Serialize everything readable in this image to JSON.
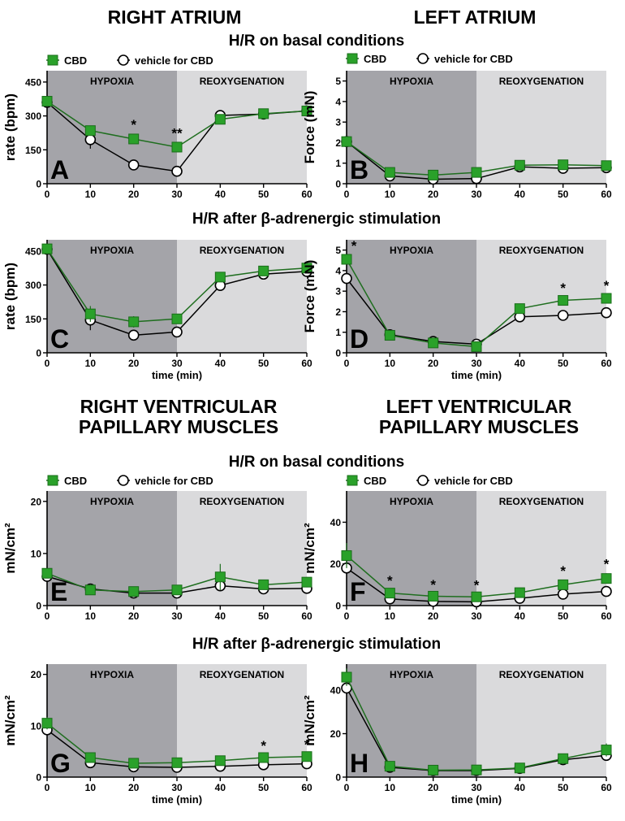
{
  "headers": {
    "right_atrium": "RIGHT ATRIUM",
    "left_atrium": "LEFT ATRIUM",
    "rv_line1": "RIGHT VENTRICULAR",
    "rv_line2": "PAPILLARY MUSCLES",
    "lv_line1": "LEFT VENTRICULAR",
    "lv_line2": "PAPILLARY MUSCLES",
    "hr_basal_1": "H/R on basal conditions",
    "hr_beta_1": "H/R after β-adrenergic stimulation",
    "hr_basal_2": "H/R on basal conditions",
    "hr_beta_2": "H/R after β-adrenergic stimulation"
  },
  "legend": {
    "cbd": "CBD",
    "vehicle": "vehicle for CBD"
  },
  "regions": {
    "hypoxia": "HYPOXIA",
    "reoxygenation": "REOXYGENATION"
  },
  "colors": {
    "cbd": "#2aa12a",
    "cbd_edge": "#1a6e1a",
    "hypoxia_bg": "#a4a4a9",
    "reox_bg": "#dadadc",
    "line": "#000000"
  },
  "chart_data": [
    {
      "panel": "A",
      "type": "line",
      "xlabel": "",
      "ylabel": "rate (bpm)",
      "x": [
        0,
        10,
        20,
        30,
        40,
        50,
        60
      ],
      "ylim": [
        0,
        500
      ],
      "yticks": [
        0,
        150,
        300,
        450
      ],
      "xticks": [
        0,
        10,
        20,
        30,
        40,
        50,
        60
      ],
      "series": [
        {
          "name": "CBD",
          "values": [
            365,
            235,
            198,
            162,
            285,
            310,
            322
          ],
          "err": [
            15,
            20,
            22,
            20,
            15,
            12,
            10
          ]
        },
        {
          "name": "vehicle for CBD",
          "values": [
            360,
            195,
            83,
            55,
            302,
            308,
            322
          ],
          "err": [
            15,
            40,
            20,
            12,
            10,
            10,
            8
          ]
        }
      ],
      "annotations": [
        {
          "x": 20,
          "text": "*"
        },
        {
          "x": 30,
          "text": "**"
        }
      ]
    },
    {
      "panel": "B",
      "type": "line",
      "xlabel": "",
      "ylabel": "Force (mN)",
      "x": [
        0,
        10,
        20,
        30,
        40,
        50,
        60
      ],
      "ylim": [
        0,
        5.5
      ],
      "yticks": [
        0,
        1,
        2,
        3,
        4,
        5
      ],
      "xticks": [
        0,
        10,
        20,
        30,
        40,
        50,
        60
      ],
      "series": [
        {
          "name": "CBD",
          "values": [
            2.05,
            0.55,
            0.42,
            0.55,
            0.9,
            0.92,
            0.88
          ],
          "err": [
            0.15,
            0.1,
            0.1,
            0.1,
            0.1,
            0.1,
            0.1
          ]
        },
        {
          "name": "vehicle for CBD",
          "values": [
            2.05,
            0.38,
            0.22,
            0.25,
            0.82,
            0.75,
            0.78
          ],
          "err": [
            0.15,
            0.1,
            0.08,
            0.08,
            0.1,
            0.1,
            0.1
          ]
        }
      ],
      "annotations": []
    },
    {
      "panel": "C",
      "type": "line",
      "xlabel": "time (min)",
      "ylabel": "rate (bpm)",
      "x": [
        0,
        10,
        20,
        30,
        40,
        50,
        60
      ],
      "ylim": [
        0,
        500
      ],
      "yticks": [
        0,
        150,
        300,
        450
      ],
      "xticks": [
        0,
        10,
        20,
        30,
        40,
        50,
        60
      ],
      "series": [
        {
          "name": "CBD",
          "values": [
            460,
            172,
            137,
            150,
            335,
            362,
            375
          ],
          "err": [
            10,
            35,
            25,
            15,
            15,
            12,
            10
          ]
        },
        {
          "name": "vehicle for CBD",
          "values": [
            458,
            145,
            78,
            92,
            298,
            348,
            360
          ],
          "err": [
            10,
            45,
            20,
            15,
            15,
            12,
            10
          ]
        }
      ],
      "annotations": []
    },
    {
      "panel": "D",
      "type": "line",
      "xlabel": "time (min)",
      "ylabel": "Force (mN)",
      "x": [
        0,
        10,
        20,
        30,
        40,
        50,
        60
      ],
      "ylim": [
        0,
        5.5
      ],
      "yticks": [
        0,
        1,
        2,
        3,
        4,
        5
      ],
      "xticks": [
        0,
        10,
        20,
        30,
        40,
        50,
        60
      ],
      "series": [
        {
          "name": "CBD",
          "values": [
            4.55,
            0.85,
            0.48,
            0.3,
            2.15,
            2.55,
            2.65
          ],
          "err": [
            0.2,
            0.1,
            0.08,
            0.08,
            0.15,
            0.15,
            0.15
          ]
        },
        {
          "name": "vehicle for CBD",
          "values": [
            3.62,
            0.88,
            0.55,
            0.42,
            1.75,
            1.82,
            1.95
          ],
          "err": [
            0.2,
            0.1,
            0.08,
            0.08,
            0.12,
            0.1,
            0.1
          ]
        }
      ],
      "annotations": [
        {
          "x": 0,
          "text": "*"
        },
        {
          "x": 50,
          "text": "*"
        },
        {
          "x": 60,
          "text": "*"
        }
      ]
    },
    {
      "panel": "E",
      "type": "line",
      "xlabel": "",
      "ylabel": "mN/cm²",
      "x": [
        0,
        10,
        20,
        30,
        40,
        50,
        60
      ],
      "ylim": [
        0,
        22
      ],
      "yticks": [
        0,
        10,
        20
      ],
      "xticks": [
        0,
        10,
        20,
        30,
        40,
        50,
        60
      ],
      "series": [
        {
          "name": "CBD",
          "values": [
            6.2,
            3.0,
            2.7,
            3.0,
            5.5,
            4.0,
            4.5
          ],
          "err": [
            0.8,
            0.6,
            0.5,
            0.5,
            2.5,
            0.8,
            1.0
          ]
        },
        {
          "name": "vehicle for CBD",
          "values": [
            5.6,
            3.2,
            2.4,
            2.4,
            3.8,
            3.2,
            3.3
          ],
          "err": [
            0.6,
            0.5,
            0.4,
            0.4,
            1.0,
            0.5,
            0.5
          ]
        }
      ],
      "annotations": []
    },
    {
      "panel": "F",
      "type": "line",
      "xlabel": "",
      "ylabel": "mN/cm²",
      "x": [
        0,
        10,
        20,
        30,
        40,
        50,
        60
      ],
      "ylim": [
        0,
        55
      ],
      "yticks": [
        0,
        20,
        40
      ],
      "xticks": [
        0,
        10,
        20,
        30,
        40,
        50,
        60
      ],
      "series": [
        {
          "name": "CBD",
          "values": [
            24,
            6,
            4.5,
            4.2,
            6.2,
            10,
            13
          ],
          "err": [
            6,
            1.5,
            1,
            1,
            1,
            2,
            2.5
          ]
        },
        {
          "name": "vehicle for CBD",
          "values": [
            18,
            3.2,
            2,
            1.8,
            3.5,
            5.5,
            6.8
          ],
          "err": [
            2,
            0.8,
            0.5,
            0.5,
            0.8,
            1,
            1.2
          ]
        }
      ],
      "annotations": [
        {
          "x": 10,
          "text": "*"
        },
        {
          "x": 20,
          "text": "*"
        },
        {
          "x": 30,
          "text": "*"
        },
        {
          "x": 50,
          "text": "*"
        },
        {
          "x": 60,
          "text": "*"
        }
      ]
    },
    {
      "panel": "G",
      "type": "line",
      "xlabel": "time (min)",
      "ylabel": "mN/cm²",
      "x": [
        0,
        10,
        20,
        30,
        40,
        50,
        60
      ],
      "ylim": [
        0,
        22
      ],
      "yticks": [
        0,
        10,
        20
      ],
      "xticks": [
        0,
        10,
        20,
        30,
        40,
        50,
        60
      ],
      "series": [
        {
          "name": "CBD",
          "values": [
            10.5,
            3.8,
            2.7,
            2.8,
            3.2,
            3.8,
            4.0
          ],
          "err": [
            1.2,
            0.5,
            0.4,
            0.4,
            0.4,
            0.5,
            0.5
          ]
        },
        {
          "name": "vehicle for CBD",
          "values": [
            9.2,
            2.8,
            2.0,
            1.9,
            2.1,
            2.4,
            2.6
          ],
          "err": [
            1.0,
            0.4,
            0.3,
            0.3,
            0.3,
            0.3,
            0.3
          ]
        }
      ],
      "annotations": [
        {
          "x": 50,
          "text": "*"
        },
        {
          "x": 60,
          "text": "*"
        }
      ]
    },
    {
      "panel": "H",
      "type": "line",
      "xlabel": "time (min)",
      "ylabel": "mN/cm²",
      "x": [
        0,
        10,
        20,
        30,
        40,
        50,
        60
      ],
      "ylim": [
        0,
        52
      ],
      "yticks": [
        0,
        20,
        40
      ],
      "xticks": [
        0,
        10,
        20,
        30,
        40,
        50,
        60
      ],
      "series": [
        {
          "name": "CBD",
          "values": [
            46,
            5,
            3.2,
            3.3,
            4.2,
            8.5,
            12.5
          ],
          "err": [
            4,
            1,
            0.6,
            0.6,
            0.8,
            1.5,
            3
          ]
        },
        {
          "name": "vehicle for CBD",
          "values": [
            41,
            4.5,
            3.0,
            3.0,
            4.0,
            8.0,
            10.0
          ],
          "err": [
            3,
            0.8,
            0.5,
            0.5,
            0.6,
            1.2,
            1.5
          ]
        }
      ],
      "annotations": []
    }
  ]
}
